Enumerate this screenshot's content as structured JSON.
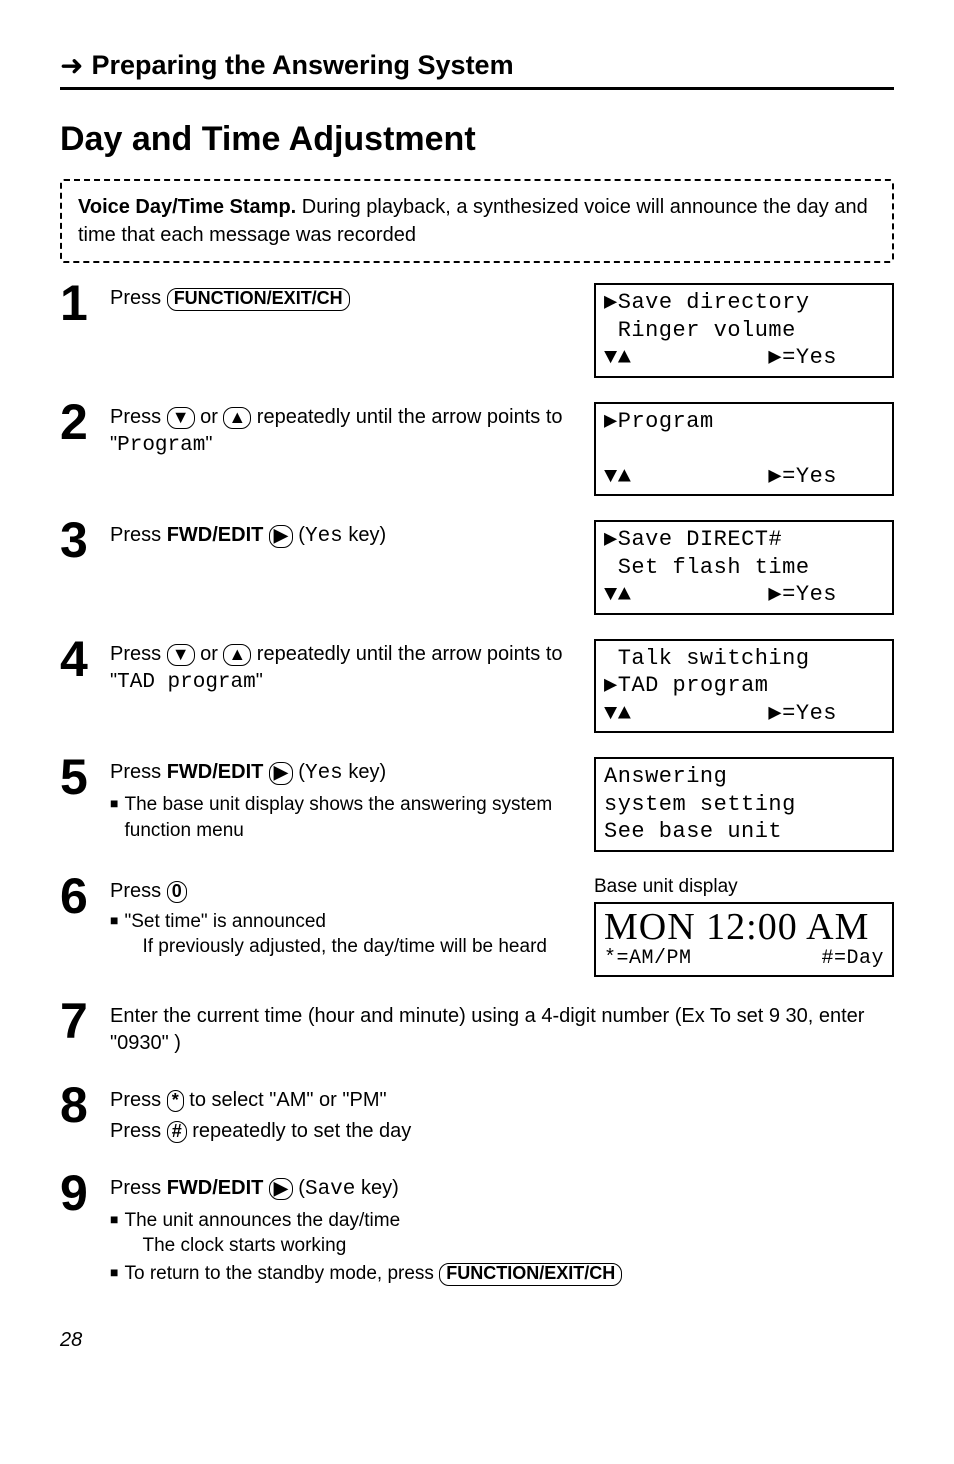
{
  "section_title": "Preparing the Answering System",
  "page_title": "Day and Time Adjustment",
  "notice": {
    "lead": "Voice Day/Time Stamp.",
    "rest": " During playback, a synthesized voice will announce the day and time that each message was recorded"
  },
  "steps": [
    {
      "num": "1",
      "parts": [
        "Press ",
        {
          "key": "FUNCTION/EXIT/CH"
        }
      ],
      "lcd": {
        "lines": [
          "▶Save directory",
          " Ringer volume",
          "▼▲          ▶=Yes"
        ]
      }
    },
    {
      "num": "2",
      "parts": [
        "Press ",
        {
          "key": "▼",
          "thin": true
        },
        " or ",
        {
          "key": "▲",
          "thin": true
        },
        " repeatedly until the arrow points to \"",
        {
          "mono": "Program"
        },
        "\""
      ],
      "lcd": {
        "lines": [
          "▶Program",
          "",
          "▼▲          ▶=Yes"
        ]
      }
    },
    {
      "num": "3",
      "parts": [
        "Press ",
        {
          "bold": "FWD/EDIT"
        },
        " ",
        {
          "key": "▶",
          "thin": true
        },
        " (",
        {
          "mono": "Yes"
        },
        " key)"
      ],
      "lcd": {
        "lines": [
          "▶Save DIRECT#",
          " Set flash time",
          "▼▲          ▶=Yes"
        ]
      }
    },
    {
      "num": "4",
      "parts": [
        "Press ",
        {
          "key": "▼",
          "thin": true
        },
        " or ",
        {
          "key": "▲",
          "thin": true
        },
        " repeatedly until the arrow points to \"",
        {
          "mono": "TAD program"
        },
        "\""
      ],
      "lcd": {
        "lines": [
          " Talk switching",
          "▶TAD program",
          "▼▲          ▶=Yes"
        ]
      }
    },
    {
      "num": "5",
      "parts": [
        "Press ",
        {
          "bold": "FWD/EDIT"
        },
        " ",
        {
          "key": "▶",
          "thin": true
        },
        " (",
        {
          "mono": "Yes"
        },
        " key)"
      ],
      "bullets": [
        {
          "text": "The base unit display shows the answering system function menu"
        }
      ],
      "lcd": {
        "lines": [
          "Answering",
          "system setting",
          "See base unit"
        ]
      }
    },
    {
      "num": "6",
      "parts": [
        "Press ",
        {
          "key": "0",
          "thin": true
        }
      ],
      "bullets": [
        {
          "text": "\"Set time\" is announced",
          "extra": "If previously adjusted, the day/time will be heard"
        }
      ],
      "lcd": {
        "label": "Base unit display",
        "base": true,
        "time": "MON 12:00 AM",
        "hints": [
          "*=AM/PM",
          "#=Day"
        ]
      }
    },
    {
      "num": "7",
      "parts": [
        "Enter the current time (hour and minute) using a 4-digit number (Ex  To set 9 30, enter \"0930\" )"
      ]
    },
    {
      "num": "8",
      "parts": [
        "Press ",
        {
          "key": "*",
          "thin": true
        },
        " to select \"AM\" or \"PM\""
      ],
      "second_line_parts": [
        "Press ",
        {
          "key": "#",
          "thin": true
        },
        " repeatedly to set the day"
      ]
    },
    {
      "num": "9",
      "parts": [
        "Press ",
        {
          "bold": "FWD/EDIT"
        },
        " ",
        {
          "key": "▶",
          "thin": true
        },
        " (",
        {
          "mono": "Save"
        },
        " key)"
      ],
      "bullets": [
        {
          "text": "The unit announces the day/time",
          "extra": "The clock starts working"
        },
        {
          "text_parts": [
            "To return to the standby mode, press ",
            {
              "key": "FUNCTION/EXIT/CH"
            }
          ]
        }
      ]
    }
  ],
  "page_number": "28"
}
